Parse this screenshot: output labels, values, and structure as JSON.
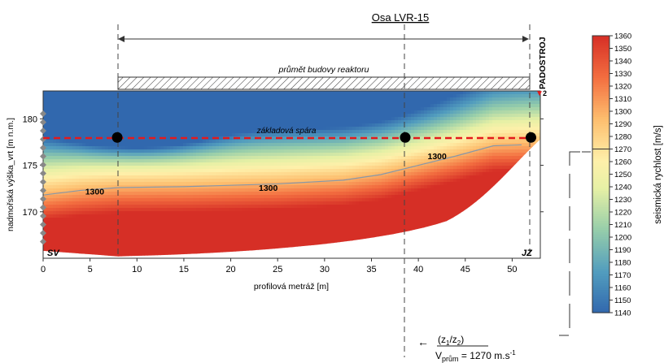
{
  "chart_data": {
    "type": "heatmap",
    "axis_title": "Osa LVR-15",
    "xlabel": "profilová metráž [m]",
    "ylabel": "nadmořská výška_vrt [m n.m.]",
    "colorbar_label": "seismická rychlost [m/s]",
    "xlim": [
      0,
      53
    ],
    "ylim": [
      165,
      183
    ],
    "x_ticks": [
      0,
      5,
      10,
      15,
      20,
      25,
      30,
      35,
      40,
      45,
      50
    ],
    "y_ticks": [
      170,
      175,
      180
    ],
    "color_range": [
      1140,
      1360
    ],
    "colorbar_ticks": [
      1140,
      1150,
      1160,
      1170,
      1180,
      1190,
      1200,
      1210,
      1220,
      1230,
      1240,
      1250,
      1260,
      1270,
      1280,
      1290,
      1300,
      1310,
      1320,
      1330,
      1340,
      1350,
      1360
    ],
    "colorbar_marked": 1270,
    "reactor_label": "průmět budovy reaktoru",
    "reactor_span": [
      7.9,
      52.0
    ],
    "foundation_label": "základová spára",
    "foundation_elevation": 178,
    "boreholes": [
      {
        "x": 7.9,
        "y": 178
      },
      {
        "x": 38.6,
        "y": 178
      },
      {
        "x": 52.0,
        "y": 178
      }
    ],
    "contour_label": "1300",
    "contour_labels": [
      {
        "text": "1300",
        "x": 5.5,
        "y": 172.2
      },
      {
        "text": "1300",
        "x": 24,
        "y": 172.6
      },
      {
        "text": "1300",
        "x": 42,
        "y": 176
      }
    ],
    "contour_1300": [
      [
        0,
        171.8
      ],
      [
        4,
        172.3
      ],
      [
        8,
        172.6
      ],
      [
        15,
        172.7
      ],
      [
        25,
        173.0
      ],
      [
        32,
        173.4
      ],
      [
        36,
        174.0
      ],
      [
        40,
        175.0
      ],
      [
        44,
        176.0
      ],
      [
        48,
        177.1
      ],
      [
        51,
        177.2
      ]
    ],
    "padostroj_label": "PADOSTROJ",
    "padostroj_marker": "▼",
    "padostroj_number": "2",
    "left_end_label": "SV",
    "right_end_label": "JZ",
    "formula_numerator": "(z1/z2)",
    "formula_value": "Vprům = 1270 m.s-1",
    "formula_arrow": "←"
  }
}
